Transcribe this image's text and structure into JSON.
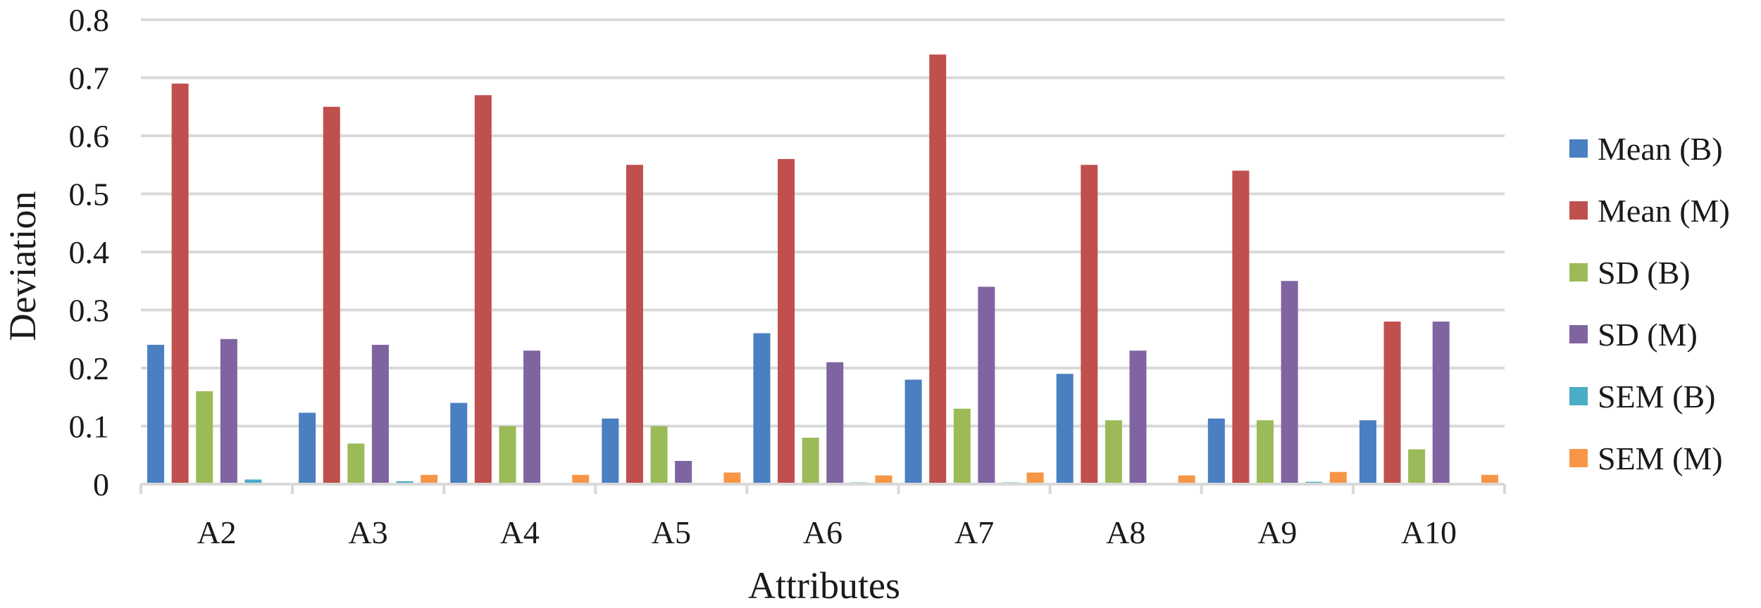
{
  "chart_data": {
    "type": "bar",
    "xlabel": "Attributes",
    "ylabel": "Deviation",
    "ylim": [
      0,
      0.8
    ],
    "yticks": [
      "0",
      "0.1",
      "0.2",
      "0.3",
      "0.4",
      "0.5",
      "0.6",
      "0.7",
      "0.8"
    ],
    "grid": true,
    "legend_position": "right",
    "categories": [
      "A2",
      "A3",
      "A4",
      "A5",
      "A6",
      "A7",
      "A8",
      "A9",
      "A10"
    ],
    "series": [
      {
        "name": "Mean (B)",
        "color": "#4a7fc1",
        "values": [
          0.24,
          0.123,
          0.14,
          0.113,
          0.26,
          0.18,
          0.19,
          0.113,
          0.11
        ]
      },
      {
        "name": "Mean (M)",
        "color": "#c0504d",
        "values": [
          0.69,
          0.65,
          0.67,
          0.55,
          0.56,
          0.74,
          0.55,
          0.54,
          0.28
        ]
      },
      {
        "name": "SD (B)",
        "color": "#9bbb59",
        "values": [
          0.16,
          0.07,
          0.1,
          0.1,
          0.08,
          0.13,
          0.11,
          0.11,
          0.06
        ]
      },
      {
        "name": "SD (M)",
        "color": "#8064a2",
        "values": [
          0.25,
          0.24,
          0.23,
          0.04,
          0.21,
          0.34,
          0.23,
          0.35,
          0.28
        ]
      },
      {
        "name": "SEM (B)",
        "color": "#4bacc6",
        "values": [
          0.008,
          0.005,
          0.002,
          0.002,
          0.003,
          0.003,
          0.002,
          0.004,
          0.002
        ]
      },
      {
        "name": "SEM (M)",
        "color": "#f79646",
        "values": [
          0.002,
          0.016,
          0.016,
          0.02,
          0.015,
          0.02,
          0.015,
          0.021,
          0.016
        ]
      }
    ]
  }
}
